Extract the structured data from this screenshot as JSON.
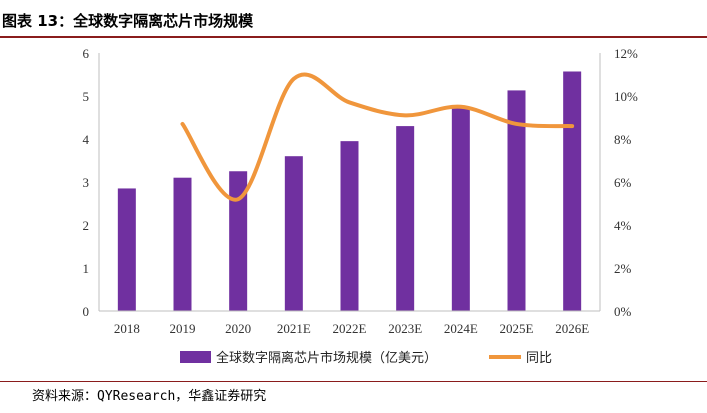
{
  "header": {
    "title": "图表 13：全球数字隔离芯片市场规模"
  },
  "footer": {
    "source": "资料来源：QYResearch，华鑫证券研究"
  },
  "colors": {
    "bar": "#7030a0",
    "line": "#f0963c",
    "axis": "#bfbfbf",
    "rule": "#8a1c1c"
  },
  "chart_data": {
    "type": "bar",
    "title": "全球数字隔离芯片市场规模",
    "categories": [
      "2018",
      "2019",
      "2020",
      "2021E",
      "2022E",
      "2023E",
      "2024E",
      "2025E",
      "2026E"
    ],
    "series": [
      {
        "name": "全球数字隔离芯片市场规模（亿美元）",
        "type": "bar",
        "axis": "left",
        "values": [
          2.85,
          3.1,
          3.25,
          3.6,
          3.95,
          4.3,
          4.72,
          5.13,
          5.57
        ]
      },
      {
        "name": "同比",
        "type": "line",
        "axis": "right",
        "values": [
          null,
          8.7,
          5.2,
          10.8,
          9.7,
          9.1,
          9.5,
          8.7,
          8.6
        ]
      }
    ],
    "y_left": {
      "min": 0,
      "max": 6,
      "ticks": [
        "0",
        "1",
        "2",
        "3",
        "4",
        "5",
        "6"
      ]
    },
    "y_right": {
      "min": 0,
      "max": 12,
      "ticks": [
        "0%",
        "2%",
        "4%",
        "6%",
        "8%",
        "10%",
        "12%"
      ]
    },
    "legend": [
      "全球数字隔离芯片市场规模（亿美元）",
      "同比"
    ],
    "legend_position": "bottom",
    "grid": false
  }
}
